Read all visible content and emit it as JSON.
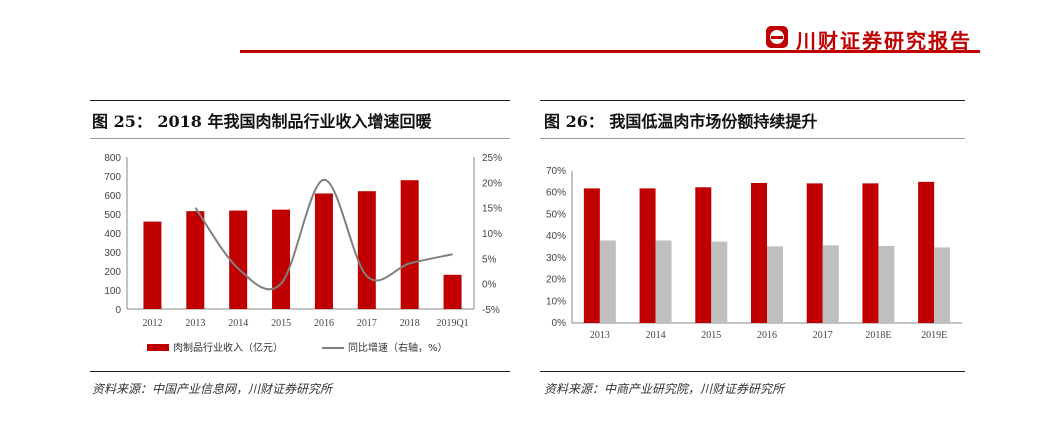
{
  "header": {
    "brand": "川财证券研究报告",
    "logo_icon": "chuancai-logo-icon",
    "accent": "#c00000"
  },
  "left_panel": {
    "title": "图 25： 2018 年我国肉制品行业收入增速回暖",
    "source": "资料来源：中国产业信息网，川财证券研究所"
  },
  "right_panel": {
    "title": "图 26： 我国低温肉市场份额持续提升",
    "source": "资料来源：中商产业研究院，川财证券研究所"
  },
  "chart_data": [
    {
      "type": "bar+line",
      "categories": [
        "2012",
        "2013",
        "2014",
        "2015",
        "2016",
        "2017",
        "2018",
        "2019Q1"
      ],
      "ylim": [
        0,
        800
      ],
      "yticks": [
        "0",
        "100",
        "200",
        "300",
        "400",
        "500",
        "600",
        "700",
        "800"
      ],
      "y2lim": [
        -5,
        25
      ],
      "y2ticks": [
        "-5%",
        "0%",
        "5%",
        "10%",
        "15%",
        "20%",
        "25%"
      ],
      "series": [
        {
          "name": "肉制品行业收入（亿元）",
          "type": "bar",
          "color": "#c00000",
          "values": [
            460,
            515,
            518,
            523,
            608,
            620,
            678,
            180
          ]
        },
        {
          "name": "同比增速（右轴，%）",
          "type": "line",
          "axis": "right",
          "color": "#808080",
          "values": [
            null,
            15,
            3,
            0,
            20.5,
            1.5,
            4,
            5.8
          ]
        }
      ],
      "legend": "bottom",
      "grid": false
    },
    {
      "type": "bar",
      "categories": [
        "2013",
        "2014",
        "2015",
        "2016",
        "2017",
        "2018E",
        "2019E"
      ],
      "ylim": [
        0,
        70
      ],
      "yticks": [
        "0%",
        "10%",
        "20%",
        "30%",
        "40%",
        "50%",
        "60%",
        "70%"
      ],
      "series": [
        {
          "color": "#c00000",
          "values": [
            62,
            62,
            62.5,
            64.5,
            64.3,
            64.3,
            65
          ]
        },
        {
          "color": "#bfbfbf",
          "values": [
            38,
            38,
            37.5,
            35.3,
            35.8,
            35.5,
            34.8
          ]
        }
      ],
      "legend": "none",
      "grid": false
    }
  ]
}
